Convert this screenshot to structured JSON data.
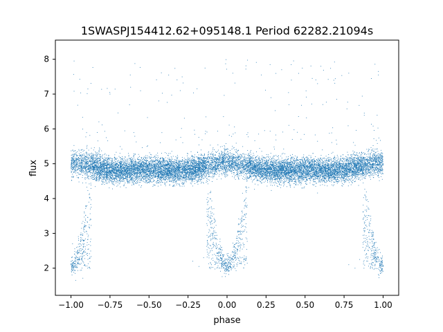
{
  "chart_data": {
    "type": "scatter",
    "title": "1SWASPJ154412.62+095148.1 Period 62282.21094s",
    "xlabel": "phase",
    "ylabel": "flux",
    "xlim": [
      -1.1,
      1.1
    ],
    "ylim": [
      1.22,
      8.55
    ],
    "xticks": [
      -1.0,
      -0.75,
      -0.5,
      -0.25,
      0.0,
      0.25,
      0.5,
      0.75,
      1.0
    ],
    "xtick_labels": [
      "−1.00",
      "−0.75",
      "−0.50",
      "−0.25",
      "0.00",
      "0.25",
      "0.50",
      "0.75",
      "1.00"
    ],
    "yticks": [
      2,
      3,
      4,
      5,
      6,
      7,
      8
    ],
    "ytick_labels": [
      "2",
      "3",
      "4",
      "5",
      "6",
      "7",
      "8"
    ],
    "grid": false,
    "legend": "none",
    "point_color": "#1f77b4",
    "series": [
      {
        "phase_range": [
          -1.0,
          1.0
        ],
        "baseline_flux": 4.95,
        "baseline_scatter": 0.25,
        "primary_eclipse": {
          "center_phases": [
            -1.0,
            0.0,
            1.0
          ],
          "half_width": 0.13,
          "min_flux": 2.05
        },
        "secondary_dip": {
          "center_phases": [
            -0.5,
            0.5
          ],
          "flux_drop": 0.2
        },
        "outliers_range": [
          5.6,
          8.0
        ],
        "points": [
          [
            -0.98,
            2.05
          ],
          [
            -0.96,
            2.3
          ],
          [
            -0.99,
            2.7
          ],
          [
            -0.97,
            1.65
          ],
          [
            -0.95,
            2.15
          ],
          [
            -0.22,
            2.2
          ],
          [
            -0.18,
            2.05
          ],
          [
            -0.15,
            2.3
          ],
          [
            -0.12,
            2.6
          ],
          [
            -0.1,
            2.1
          ],
          [
            -0.08,
            2.4
          ],
          [
            -0.05,
            2.0
          ],
          [
            -0.02,
            2.15
          ],
          [
            0.02,
            2.05
          ],
          [
            0.05,
            2.3
          ],
          [
            0.78,
            2.1
          ],
          [
            0.82,
            2.0
          ],
          [
            0.85,
            2.25
          ],
          [
            0.88,
            2.5
          ],
          [
            0.9,
            2.7
          ],
          [
            0.92,
            2.05
          ],
          [
            0.95,
            2.3
          ],
          [
            0.98,
            2.1
          ],
          [
            -0.98,
            7.95
          ],
          [
            0.97,
            7.65
          ],
          [
            0.97,
            7.55
          ],
          [
            -0.62,
            7.55
          ],
          [
            0.78,
            7.6
          ],
          [
            0.22,
            7.55
          ],
          [
            0.58,
            7.3
          ],
          [
            -0.3,
            7.1
          ],
          [
            0.35,
            7.7
          ],
          [
            -0.75,
            7.0
          ]
        ]
      }
    ]
  }
}
